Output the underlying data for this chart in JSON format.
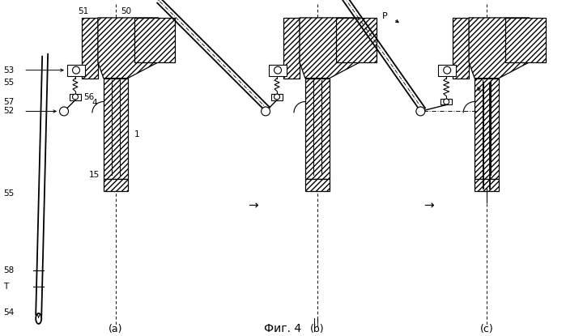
{
  "bg_color": "#ffffff",
  "line_color": "#000000",
  "title": "Фиг. 4",
  "panel_labels": [
    "(a)",
    "(b)",
    "(c)"
  ],
  "arrow_symbol": "→",
  "panel_c_label": "P"
}
